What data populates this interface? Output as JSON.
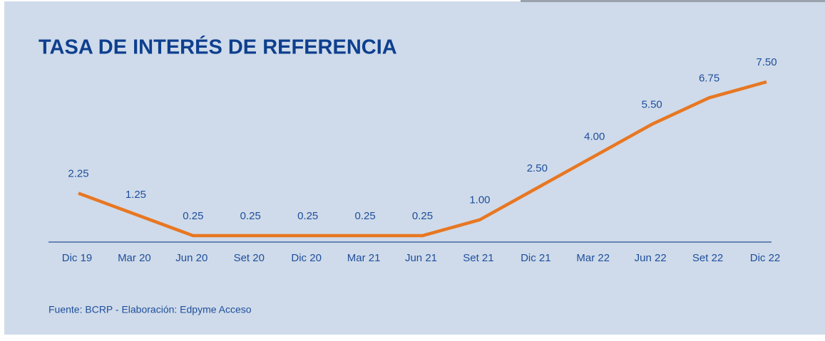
{
  "chart_data": {
    "type": "line",
    "title": "TASA DE INTERÉS DE REFERENCIA",
    "source": "Fuente: BCRP - Elaboración: Edpyme Acceso",
    "categories": [
      "Dic 19",
      "Mar 20",
      "Jun 20",
      "Set 20",
      "Dic 20",
      "Mar 21",
      "Jun 21",
      "Set 21",
      "Dic 21",
      "Mar 22",
      "Jun 22",
      "Set 22",
      "Dic 22"
    ],
    "values": [
      2.25,
      1.25,
      0.25,
      0.25,
      0.25,
      0.25,
      0.25,
      1.0,
      2.5,
      4.0,
      5.5,
      6.75,
      7.5
    ],
    "value_labels": [
      "2.25",
      "1.25",
      "0.25",
      "0.25",
      "0.25",
      "0.25",
      "0.25",
      "1.00",
      "2.50",
      "4.00",
      "5.50",
      "6.75",
      "7.50"
    ],
    "color": "#e87722"
  }
}
